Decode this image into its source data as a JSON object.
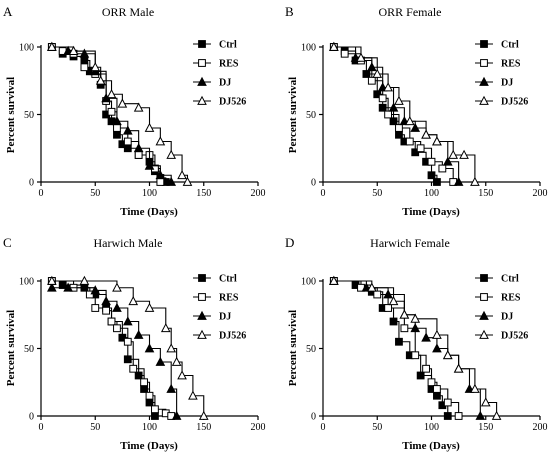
{
  "chart_data": [
    {
      "type": "line",
      "panel": "A",
      "title": "ORR Male",
      "xlabel": "Time (Days)",
      "ylabel": "Percent survival",
      "xlim": [
        0,
        200
      ],
      "ylim": [
        0,
        100
      ],
      "xticks": [
        "0",
        "50",
        "100",
        "150",
        "200"
      ],
      "yticks": [
        "0",
        "50",
        "100"
      ],
      "series": [
        {
          "name": "Ctrl",
          "marker": "filled-square",
          "x": [
            10,
            20,
            30,
            40,
            45,
            55,
            60,
            65,
            70,
            75,
            80,
            90,
            100,
            105,
            110,
            115
          ],
          "y": [
            100,
            95,
            93,
            90,
            82,
            72,
            50,
            45,
            35,
            28,
            25,
            20,
            15,
            8,
            3,
            0
          ]
        },
        {
          "name": "RES",
          "marker": "open-square",
          "x": [
            10,
            20,
            30,
            40,
            50,
            60,
            65,
            70,
            80,
            90,
            100,
            105,
            110
          ],
          "y": [
            100,
            97,
            95,
            85,
            80,
            60,
            52,
            40,
            30,
            20,
            20,
            10,
            0
          ]
        },
        {
          "name": "DJ",
          "marker": "filled-triangle",
          "x": [
            10,
            25,
            40,
            50,
            60,
            70,
            80,
            90,
            100,
            110,
            120
          ],
          "y": [
            100,
            97,
            95,
            82,
            62,
            45,
            38,
            25,
            12,
            5,
            0
          ]
        },
        {
          "name": "DJ526",
          "marker": "open-triangle",
          "x": [
            10,
            30,
            50,
            55,
            65,
            75,
            90,
            100,
            110,
            120,
            130,
            135
          ],
          "y": [
            100,
            97,
            85,
            75,
            65,
            58,
            55,
            40,
            30,
            20,
            5,
            0
          ]
        }
      ]
    },
    {
      "type": "line",
      "panel": "B",
      "title": "ORR Female",
      "xlabel": "Time (Days)",
      "ylabel": "Percent survival",
      "xlim": [
        0,
        200
      ],
      "ylim": [
        0,
        100
      ],
      "xticks": [
        "0",
        "50",
        "100",
        "150",
        "200"
      ],
      "yticks": [
        "0",
        "50",
        "100"
      ],
      "series": [
        {
          "name": "Ctrl",
          "marker": "filled-square",
          "x": [
            10,
            20,
            30,
            40,
            50,
            55,
            65,
            70,
            75,
            85,
            95,
            100,
            105
          ],
          "y": [
            100,
            97,
            90,
            80,
            65,
            55,
            45,
            35,
            30,
            22,
            15,
            5,
            0
          ]
        },
        {
          "name": "RES",
          "marker": "open-square",
          "x": [
            10,
            20,
            35,
            45,
            55,
            60,
            70,
            80,
            90,
            100,
            110,
            120
          ],
          "y": [
            100,
            95,
            90,
            75,
            62,
            50,
            40,
            30,
            25,
            15,
            10,
            0
          ]
        },
        {
          "name": "DJ",
          "marker": "filled-triangle",
          "x": [
            10,
            30,
            45,
            55,
            65,
            75,
            85,
            95,
            105,
            115,
            125
          ],
          "y": [
            100,
            92,
            85,
            70,
            55,
            45,
            40,
            35,
            30,
            15,
            0
          ]
        },
        {
          "name": "DJ526",
          "marker": "open-triangle",
          "x": [
            10,
            35,
            50,
            60,
            70,
            80,
            95,
            105,
            120,
            130,
            140
          ],
          "y": [
            100,
            92,
            80,
            70,
            60,
            45,
            35,
            30,
            20,
            20,
            0
          ]
        }
      ]
    },
    {
      "type": "line",
      "panel": "C",
      "title": "Harwich Male",
      "xlabel": "Time (Days)",
      "ylabel": "Percent survival",
      "xlim": [
        0,
        200
      ],
      "ylim": [
        0,
        100
      ],
      "xticks": [
        "0",
        "50",
        "100",
        "150",
        "200"
      ],
      "yticks": [
        "0",
        "50",
        "100"
      ],
      "series": [
        {
          "name": "Ctrl",
          "marker": "filled-square",
          "x": [
            10,
            20,
            40,
            50,
            60,
            65,
            75,
            80,
            90,
            95,
            100,
            105
          ],
          "y": [
            100,
            97,
            95,
            90,
            80,
            70,
            58,
            42,
            30,
            20,
            10,
            0
          ]
        },
        {
          "name": "RES",
          "marker": "open-square",
          "x": [
            10,
            30,
            45,
            50,
            60,
            65,
            70,
            80,
            85,
            95,
            100,
            105,
            115,
            120
          ],
          "y": [
            100,
            95,
            90,
            80,
            78,
            70,
            65,
            55,
            35,
            25,
            15,
            5,
            2,
            0
          ]
        },
        {
          "name": "DJ",
          "marker": "filled-triangle",
          "x": [
            10,
            25,
            50,
            60,
            70,
            80,
            90,
            100,
            110,
            120,
            125
          ],
          "y": [
            95,
            95,
            93,
            85,
            80,
            70,
            60,
            50,
            40,
            20,
            0
          ]
        },
        {
          "name": "DJ526",
          "marker": "open-triangle",
          "x": [
            10,
            40,
            70,
            85,
            100,
            115,
            120,
            125,
            130,
            140,
            150
          ],
          "y": [
            100,
            100,
            95,
            85,
            80,
            65,
            50,
            40,
            30,
            15,
            0
          ]
        }
      ]
    },
    {
      "type": "line",
      "panel": "D",
      "title": "Harwich Female",
      "xlabel": "Time (Days)",
      "ylabel": "Percent survival",
      "xlim": [
        0,
        200
      ],
      "ylim": [
        0,
        100
      ],
      "xticks": [
        "0",
        "50",
        "100",
        "150",
        "200"
      ],
      "yticks": [
        "0",
        "50",
        "100"
      ],
      "series": [
        {
          "name": "Ctrl",
          "marker": "filled-square",
          "x": [
            10,
            30,
            45,
            55,
            65,
            70,
            80,
            90,
            100,
            105,
            110,
            115
          ],
          "y": [
            100,
            97,
            92,
            80,
            70,
            55,
            45,
            30,
            20,
            15,
            8,
            0
          ]
        },
        {
          "name": "RES",
          "marker": "open-square",
          "x": [
            10,
            35,
            50,
            60,
            75,
            85,
            95,
            100,
            105,
            115,
            125
          ],
          "y": [
            100,
            95,
            90,
            80,
            65,
            45,
            35,
            25,
            20,
            10,
            0
          ]
        },
        {
          "name": "DJ",
          "marker": "filled-triangle",
          "x": [
            10,
            40,
            60,
            75,
            85,
            95,
            105,
            115,
            125,
            135,
            145
          ],
          "y": [
            100,
            95,
            90,
            75,
            65,
            58,
            50,
            45,
            35,
            20,
            0
          ]
        },
        {
          "name": "DJ526",
          "marker": "open-triangle",
          "x": [
            10,
            45,
            65,
            75,
            85,
            105,
            115,
            125,
            140,
            150,
            160
          ],
          "y": [
            100,
            95,
            85,
            75,
            72,
            60,
            45,
            35,
            20,
            10,
            0
          ]
        }
      ]
    }
  ]
}
